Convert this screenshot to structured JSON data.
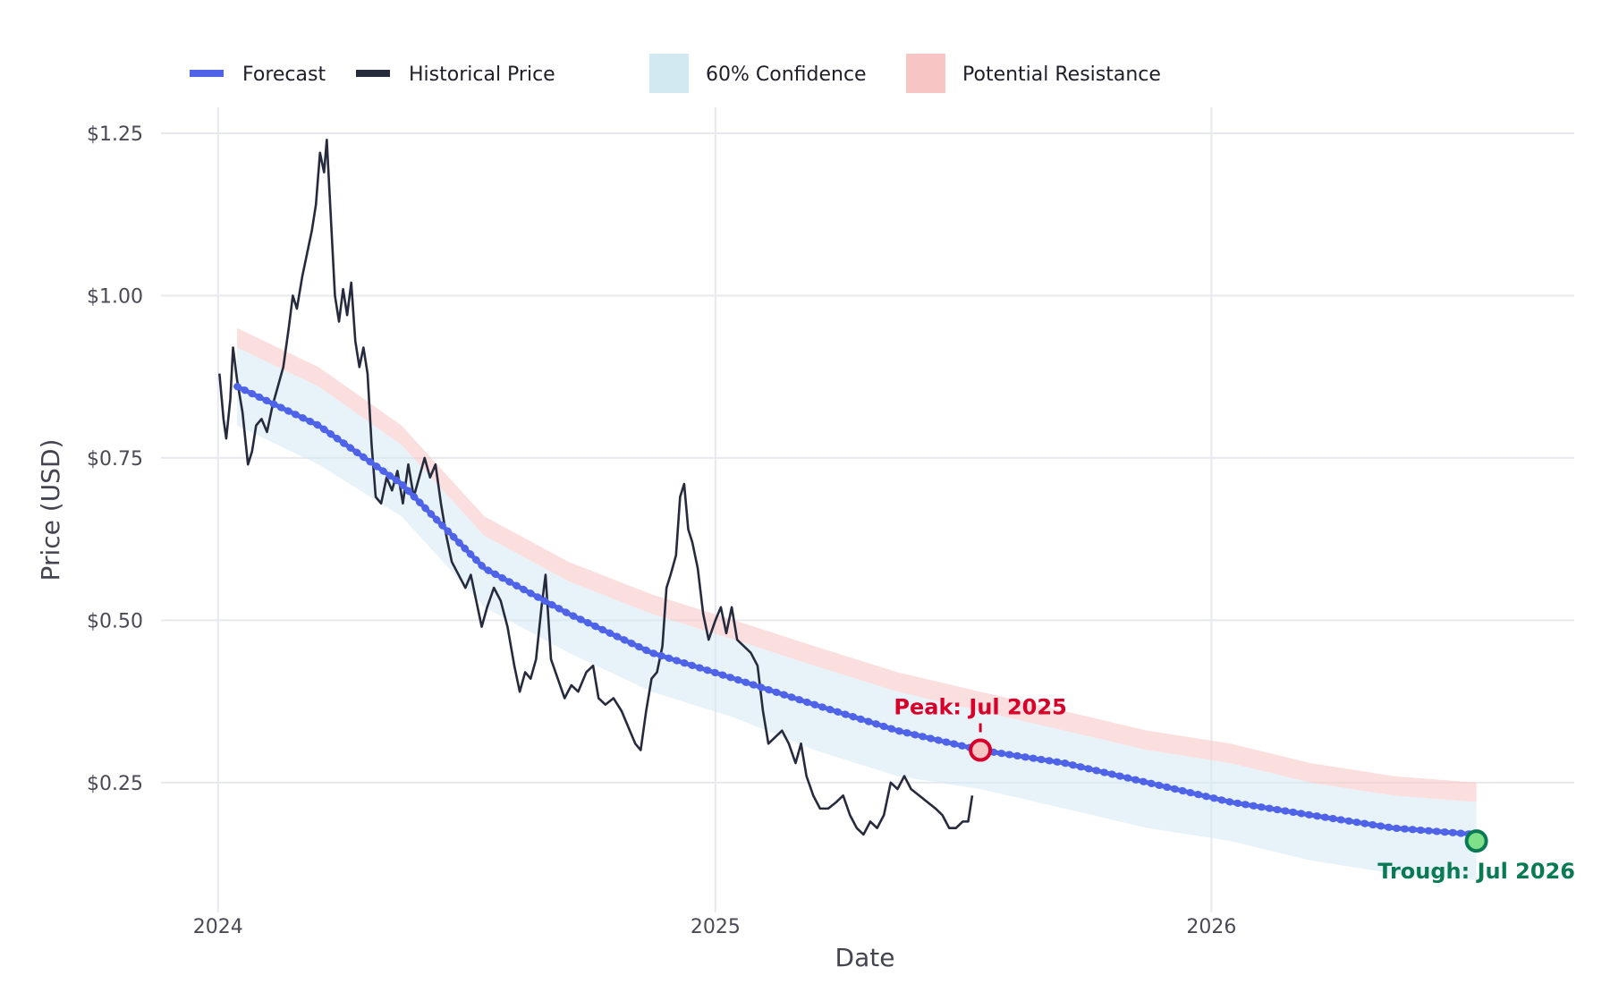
{
  "chart_data": {
    "type": "line",
    "title": "",
    "xlabel": "Date",
    "ylabel": "Price (USD)",
    "x_range": [
      "2023-11-20",
      "2026-09-25"
    ],
    "ylim": [
      0.05,
      1.29
    ],
    "x_ticks": [
      {
        "date": "2024-01-01",
        "label": "2024"
      },
      {
        "date": "2025-01-01",
        "label": "2025"
      },
      {
        "date": "2026-01-01",
        "label": "2026"
      }
    ],
    "y_ticks": [
      {
        "value": 0.25,
        "label": "$0.25"
      },
      {
        "value": 0.5,
        "label": "$0.50"
      },
      {
        "value": 0.75,
        "label": "$0.75"
      },
      {
        "value": 1.0,
        "label": "$1.00"
      },
      {
        "value": 1.25,
        "label": "$1.25"
      }
    ],
    "grid": true,
    "legend_position": "top-left",
    "legend": [
      {
        "label": "Forecast",
        "kind": "line",
        "color": "#4f63e8"
      },
      {
        "label": "Historical Price",
        "kind": "line",
        "color": "#262a3d"
      },
      {
        "label": "60% Confidence",
        "kind": "area",
        "color": "#d3e9f2"
      },
      {
        "label": "Potential Resistance",
        "kind": "area",
        "color": "#f8c5c5"
      }
    ],
    "series": [
      {
        "name": "Historical Price",
        "color": "#262a3d",
        "points": [
          [
            "2024-01-02",
            0.88
          ],
          [
            "2024-01-05",
            0.81
          ],
          [
            "2024-01-07",
            0.78
          ],
          [
            "2024-01-10",
            0.84
          ],
          [
            "2024-01-12",
            0.92
          ],
          [
            "2024-01-15",
            0.87
          ],
          [
            "2024-01-19",
            0.82
          ],
          [
            "2024-01-23",
            0.74
          ],
          [
            "2024-01-26",
            0.76
          ],
          [
            "2024-01-29",
            0.8
          ],
          [
            "2024-02-02",
            0.81
          ],
          [
            "2024-02-06",
            0.79
          ],
          [
            "2024-02-10",
            0.83
          ],
          [
            "2024-02-14",
            0.86
          ],
          [
            "2024-02-18",
            0.89
          ],
          [
            "2024-02-22",
            0.95
          ],
          [
            "2024-02-25",
            1.0
          ],
          [
            "2024-02-28",
            0.98
          ],
          [
            "2024-03-03",
            1.03
          ],
          [
            "2024-03-07",
            1.07
          ],
          [
            "2024-03-10",
            1.1
          ],
          [
            "2024-03-13",
            1.14
          ],
          [
            "2024-03-16",
            1.22
          ],
          [
            "2024-03-19",
            1.19
          ],
          [
            "2024-03-21",
            1.24
          ],
          [
            "2024-03-24",
            1.12
          ],
          [
            "2024-03-27",
            1.0
          ],
          [
            "2024-03-30",
            0.96
          ],
          [
            "2024-04-02",
            1.01
          ],
          [
            "2024-04-05",
            0.97
          ],
          [
            "2024-04-08",
            1.02
          ],
          [
            "2024-04-11",
            0.93
          ],
          [
            "2024-04-14",
            0.89
          ],
          [
            "2024-04-17",
            0.92
          ],
          [
            "2024-04-20",
            0.88
          ],
          [
            "2024-04-23",
            0.77
          ],
          [
            "2024-04-26",
            0.69
          ],
          [
            "2024-04-30",
            0.68
          ],
          [
            "2024-05-04",
            0.72
          ],
          [
            "2024-05-08",
            0.7
          ],
          [
            "2024-05-12",
            0.73
          ],
          [
            "2024-05-16",
            0.68
          ],
          [
            "2024-05-20",
            0.74
          ],
          [
            "2024-05-24",
            0.69
          ],
          [
            "2024-05-28",
            0.72
          ],
          [
            "2024-06-01",
            0.75
          ],
          [
            "2024-06-05",
            0.72
          ],
          [
            "2024-06-09",
            0.74
          ],
          [
            "2024-06-13",
            0.68
          ],
          [
            "2024-06-17",
            0.63
          ],
          [
            "2024-06-21",
            0.59
          ],
          [
            "2024-06-26",
            0.57
          ],
          [
            "2024-07-01",
            0.55
          ],
          [
            "2024-07-05",
            0.57
          ],
          [
            "2024-07-09",
            0.53
          ],
          [
            "2024-07-13",
            0.49
          ],
          [
            "2024-07-17",
            0.52
          ],
          [
            "2024-07-22",
            0.55
          ],
          [
            "2024-07-27",
            0.53
          ],
          [
            "2024-08-01",
            0.49
          ],
          [
            "2024-08-06",
            0.43
          ],
          [
            "2024-08-10",
            0.39
          ],
          [
            "2024-08-14",
            0.42
          ],
          [
            "2024-08-18",
            0.41
          ],
          [
            "2024-08-22",
            0.44
          ],
          [
            "2024-08-26",
            0.52
          ],
          [
            "2024-08-29",
            0.57
          ],
          [
            "2024-09-02",
            0.44
          ],
          [
            "2024-09-07",
            0.41
          ],
          [
            "2024-09-12",
            0.38
          ],
          [
            "2024-09-17",
            0.4
          ],
          [
            "2024-09-22",
            0.39
          ],
          [
            "2024-09-28",
            0.42
          ],
          [
            "2024-10-03",
            0.43
          ],
          [
            "2024-10-07",
            0.38
          ],
          [
            "2024-10-12",
            0.37
          ],
          [
            "2024-10-18",
            0.38
          ],
          [
            "2024-10-24",
            0.36
          ],
          [
            "2024-10-30",
            0.33
          ],
          [
            "2024-11-03",
            0.31
          ],
          [
            "2024-11-07",
            0.3
          ],
          [
            "2024-11-11",
            0.36
          ],
          [
            "2024-11-15",
            0.41
          ],
          [
            "2024-11-19",
            0.42
          ],
          [
            "2024-11-23",
            0.46
          ],
          [
            "2024-11-26",
            0.55
          ],
          [
            "2024-11-29",
            0.57
          ],
          [
            "2024-12-03",
            0.6
          ],
          [
            "2024-12-06",
            0.69
          ],
          [
            "2024-12-09",
            0.71
          ],
          [
            "2024-12-12",
            0.64
          ],
          [
            "2024-12-15",
            0.62
          ],
          [
            "2024-12-19",
            0.58
          ],
          [
            "2024-12-23",
            0.51
          ],
          [
            "2024-12-27",
            0.47
          ],
          [
            "2025-01-01",
            0.5
          ],
          [
            "2025-01-05",
            0.52
          ],
          [
            "2025-01-09",
            0.48
          ],
          [
            "2025-01-13",
            0.52
          ],
          [
            "2025-01-17",
            0.47
          ],
          [
            "2025-01-22",
            0.46
          ],
          [
            "2025-01-27",
            0.45
          ],
          [
            "2025-02-01",
            0.43
          ],
          [
            "2025-02-05",
            0.36
          ],
          [
            "2025-02-09",
            0.31
          ],
          [
            "2025-02-14",
            0.32
          ],
          [
            "2025-02-19",
            0.33
          ],
          [
            "2025-02-24",
            0.31
          ],
          [
            "2025-03-01",
            0.28
          ],
          [
            "2025-03-05",
            0.31
          ],
          [
            "2025-03-09",
            0.26
          ],
          [
            "2025-03-14",
            0.23
          ],
          [
            "2025-03-19",
            0.21
          ],
          [
            "2025-03-25",
            0.21
          ],
          [
            "2025-03-31",
            0.22
          ],
          [
            "2025-04-05",
            0.23
          ],
          [
            "2025-04-10",
            0.2
          ],
          [
            "2025-04-15",
            0.18
          ],
          [
            "2025-04-20",
            0.17
          ],
          [
            "2025-04-25",
            0.19
          ],
          [
            "2025-04-30",
            0.18
          ],
          [
            "2025-05-05",
            0.2
          ],
          [
            "2025-05-10",
            0.25
          ],
          [
            "2025-05-15",
            0.24
          ],
          [
            "2025-05-20",
            0.26
          ],
          [
            "2025-05-25",
            0.24
          ],
          [
            "2025-05-31",
            0.23
          ],
          [
            "2025-06-06",
            0.22
          ],
          [
            "2025-06-12",
            0.21
          ],
          [
            "2025-06-17",
            0.2
          ],
          [
            "2025-06-22",
            0.18
          ],
          [
            "2025-06-27",
            0.18
          ],
          [
            "2025-07-02",
            0.19
          ],
          [
            "2025-07-06",
            0.19
          ],
          [
            "2025-07-09",
            0.23
          ]
        ]
      },
      {
        "name": "Forecast",
        "color": "#4f63e8",
        "points": [
          [
            "2024-01-15",
            0.86
          ],
          [
            "2024-03-15",
            0.8
          ],
          [
            "2024-05-15",
            0.71
          ],
          [
            "2024-07-15",
            0.58
          ],
          [
            "2024-09-15",
            0.51
          ],
          [
            "2024-11-15",
            0.45
          ],
          [
            "2025-01-15",
            0.41
          ],
          [
            "2025-03-15",
            0.37
          ],
          [
            "2025-05-15",
            0.33
          ],
          [
            "2025-07-15",
            0.3
          ],
          [
            "2025-09-15",
            0.28
          ],
          [
            "2025-11-15",
            0.25
          ],
          [
            "2026-01-15",
            0.22
          ],
          [
            "2026-03-15",
            0.2
          ],
          [
            "2026-05-15",
            0.18
          ],
          [
            "2026-07-15",
            0.17
          ]
        ]
      }
    ],
    "bands": [
      {
        "name": "60% Confidence",
        "color": "#d3e9f2",
        "lower": [
          [
            "2024-01-15",
            0.8
          ],
          [
            "2024-03-15",
            0.74
          ],
          [
            "2024-05-15",
            0.66
          ],
          [
            "2024-07-15",
            0.52
          ],
          [
            "2024-09-15",
            0.45
          ],
          [
            "2024-11-15",
            0.39
          ],
          [
            "2025-01-15",
            0.35
          ],
          [
            "2025-03-15",
            0.3
          ],
          [
            "2025-05-15",
            0.26
          ],
          [
            "2025-07-15",
            0.24
          ],
          [
            "2025-09-15",
            0.21
          ],
          [
            "2025-11-15",
            0.18
          ],
          [
            "2026-01-15",
            0.16
          ],
          [
            "2026-03-15",
            0.13
          ],
          [
            "2026-05-15",
            0.11
          ],
          [
            "2026-07-15",
            0.1
          ]
        ],
        "upper": [
          [
            "2024-01-15",
            0.92
          ],
          [
            "2024-03-15",
            0.86
          ],
          [
            "2024-05-15",
            0.77
          ],
          [
            "2024-07-15",
            0.63
          ],
          [
            "2024-09-15",
            0.56
          ],
          [
            "2024-11-15",
            0.51
          ],
          [
            "2025-01-15",
            0.47
          ],
          [
            "2025-03-15",
            0.43
          ],
          [
            "2025-05-15",
            0.39
          ],
          [
            "2025-07-15",
            0.36
          ],
          [
            "2025-09-15",
            0.33
          ],
          [
            "2025-11-15",
            0.3
          ],
          [
            "2026-01-15",
            0.28
          ],
          [
            "2026-03-15",
            0.25
          ],
          [
            "2026-05-15",
            0.23
          ],
          [
            "2026-07-15",
            0.22
          ]
        ]
      },
      {
        "name": "Potential Resistance",
        "color": "#f8c5c5",
        "lower": [
          [
            "2024-01-15",
            0.92
          ],
          [
            "2024-03-15",
            0.86
          ],
          [
            "2024-05-15",
            0.77
          ],
          [
            "2024-07-15",
            0.63
          ],
          [
            "2024-09-15",
            0.56
          ],
          [
            "2024-11-15",
            0.51
          ],
          [
            "2025-01-15",
            0.47
          ],
          [
            "2025-03-15",
            0.43
          ],
          [
            "2025-05-15",
            0.39
          ],
          [
            "2025-07-15",
            0.36
          ],
          [
            "2025-09-15",
            0.33
          ],
          [
            "2025-11-15",
            0.3
          ],
          [
            "2026-01-15",
            0.28
          ],
          [
            "2026-03-15",
            0.25
          ],
          [
            "2026-05-15",
            0.23
          ],
          [
            "2026-07-15",
            0.22
          ]
        ],
        "upper": [
          [
            "2024-01-15",
            0.95
          ],
          [
            "2024-03-15",
            0.89
          ],
          [
            "2024-05-15",
            0.8
          ],
          [
            "2024-07-15",
            0.66
          ],
          [
            "2024-09-15",
            0.59
          ],
          [
            "2024-11-15",
            0.54
          ],
          [
            "2025-01-15",
            0.5
          ],
          [
            "2025-03-15",
            0.46
          ],
          [
            "2025-05-15",
            0.42
          ],
          [
            "2025-07-15",
            0.39
          ],
          [
            "2025-09-15",
            0.36
          ],
          [
            "2025-11-15",
            0.33
          ],
          [
            "2026-01-15",
            0.31
          ],
          [
            "2026-03-15",
            0.28
          ],
          [
            "2026-05-15",
            0.26
          ],
          [
            "2026-07-15",
            0.25
          ]
        ]
      }
    ],
    "annotations": [
      {
        "kind": "peak",
        "label": "Peak: Jul 2025",
        "date": "2025-07-15",
        "value": 0.3,
        "color": "#d6002a",
        "marker_fill": "#f8c5c5"
      },
      {
        "kind": "trough",
        "label": "Trough: Jul 2026",
        "date": "2026-07-15",
        "value": 0.16,
        "color": "#0a7a55",
        "marker_fill": "#7fe08a"
      }
    ]
  }
}
